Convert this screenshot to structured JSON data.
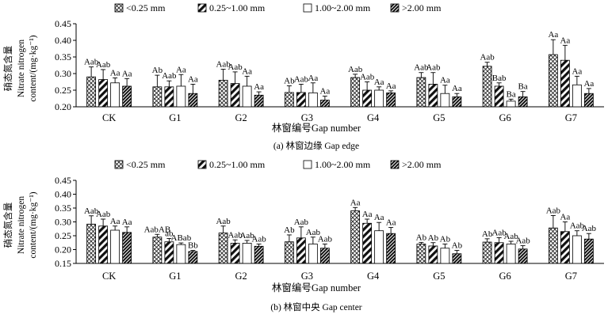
{
  "chart_data": [
    {
      "type": "bar",
      "caption": "(a) 林窗边缘 Gap edge",
      "xlabel": "林窗编号Gap number",
      "ylabel_cn": "硝态氮含量",
      "ylabel_en_1": "Nitrate nitrogen",
      "ylabel_en_2": "content/(mg·kg⁻¹)",
      "ylim": [
        0.2,
        0.45
      ],
      "yticks": [
        "0.20",
        "0.25",
        "0.30",
        "0.35",
        "0.40",
        "0.45"
      ],
      "categories": [
        "CK",
        "G1",
        "G2",
        "G3",
        "G4",
        "G5",
        "G6",
        "G7"
      ],
      "series": [
        {
          "name": "<0.25 mm",
          "pattern": "cross",
          "values": [
            0.29,
            0.26,
            0.28,
            0.243,
            0.288,
            0.288,
            0.322,
            0.357
          ],
          "errors": [
            0.03,
            0.035,
            0.033,
            0.02,
            0.01,
            0.015,
            0.012,
            0.045
          ],
          "letters": [
            "Aab",
            "Ab",
            "Aab",
            "Ab",
            "Aab",
            "Aab",
            "Aab",
            "Aa"
          ]
        },
        {
          "name": "0.25~1.00 mm",
          "pattern": "thick",
          "values": [
            0.282,
            0.26,
            0.27,
            0.243,
            0.25,
            0.268,
            0.262,
            0.34
          ],
          "errors": [
            0.03,
            0.018,
            0.035,
            0.025,
            0.025,
            0.035,
            0.01,
            0.045
          ],
          "letters": [
            "Aab",
            "Aab",
            "Aab",
            "Aab",
            "Aab",
            "Aab",
            "Bab",
            "Aa"
          ]
        },
        {
          "name": "1.00~2.00 mm",
          "pattern": "white",
          "values": [
            0.272,
            0.262,
            0.262,
            0.242,
            0.25,
            0.24,
            0.217,
            0.266
          ],
          "errors": [
            0.015,
            0.035,
            0.03,
            0.03,
            0.01,
            0.025,
            0.006,
            0.026
          ],
          "letters": [
            "Aa",
            "Aa",
            "Aa",
            "Aa",
            "Aa",
            "Aa",
            "Ba",
            "Aa"
          ]
        },
        {
          "name": ">2.00 mm",
          "pattern": "dense",
          "values": [
            0.262,
            0.24,
            0.235,
            0.22,
            0.242,
            0.23,
            0.23,
            0.24
          ],
          "errors": [
            0.023,
            0.028,
            0.01,
            0.012,
            0.006,
            0.01,
            0.016,
            0.015
          ],
          "letters": [
            "Aa",
            "Aa",
            "Aa",
            "Aa",
            "Aa",
            "Aa",
            "Ba",
            "Aa"
          ]
        }
      ]
    },
    {
      "type": "bar",
      "caption": "(b) 林窗中央 Gap center",
      "xlabel": "林窗编号Gap number",
      "ylabel_cn": "硝态氮含量",
      "ylabel_en_1": "Nitrate nitrogen",
      "ylabel_en_2": "content/(mg·kg⁻¹)",
      "ylim": [
        0.15,
        0.45
      ],
      "yticks": [
        "0.15",
        "0.20",
        "0.25",
        "0.30",
        "0.35",
        "0.40",
        "0.45"
      ],
      "categories": [
        "CK",
        "G1",
        "G2",
        "G3",
        "G4",
        "G5",
        "G6",
        "G7"
      ],
      "series": [
        {
          "name": "<0.25 mm",
          "pattern": "cross",
          "values": [
            0.292,
            0.245,
            0.26,
            0.228,
            0.34,
            0.22,
            0.227,
            0.278
          ],
          "errors": [
            0.03,
            0.01,
            0.025,
            0.025,
            0.012,
            0.006,
            0.012,
            0.045
          ],
          "letters": [
            "Aab",
            "AabAB",
            "Aab",
            "Ab",
            "Aa",
            "Ab",
            "Ab",
            "Aab"
          ]
        },
        {
          "name": "0.25~1.00 mm",
          "pattern": "thick",
          "values": [
            0.285,
            0.228,
            0.223,
            0.242,
            0.295,
            0.213,
            0.225,
            0.265
          ],
          "errors": [
            0.025,
            0.012,
            0.012,
            0.04,
            0.015,
            0.012,
            0.018,
            0.035
          ],
          "letters": [
            "Aab",
            "ab",
            "Aab",
            "Aab",
            "Aa",
            "Ab",
            "Aab",
            "Aa"
          ]
        },
        {
          "name": "1.00~2.00 mm",
          "pattern": "white",
          "values": [
            0.27,
            0.218,
            0.223,
            0.22,
            0.268,
            0.205,
            0.22,
            0.25
          ],
          "errors": [
            0.015,
            0.006,
            0.01,
            0.025,
            0.03,
            0.015,
            0.01,
            0.018
          ],
          "letters": [
            "Aa",
            "ABab",
            "Aab",
            "Aab",
            "Aa",
            "Ab",
            "Aab",
            "Aab"
          ]
        },
        {
          "name": ">2.00 mm",
          "pattern": "dense",
          "values": [
            0.262,
            0.193,
            0.212,
            0.205,
            0.258,
            0.185,
            0.202,
            0.238
          ],
          "errors": [
            0.02,
            0.004,
            0.008,
            0.015,
            0.022,
            0.012,
            0.012,
            0.02
          ],
          "letters": [
            "Aa",
            "Bb",
            "Aab",
            "Aab",
            "Aa",
            "Ab",
            "Aab",
            "Aab"
          ]
        }
      ]
    }
  ]
}
